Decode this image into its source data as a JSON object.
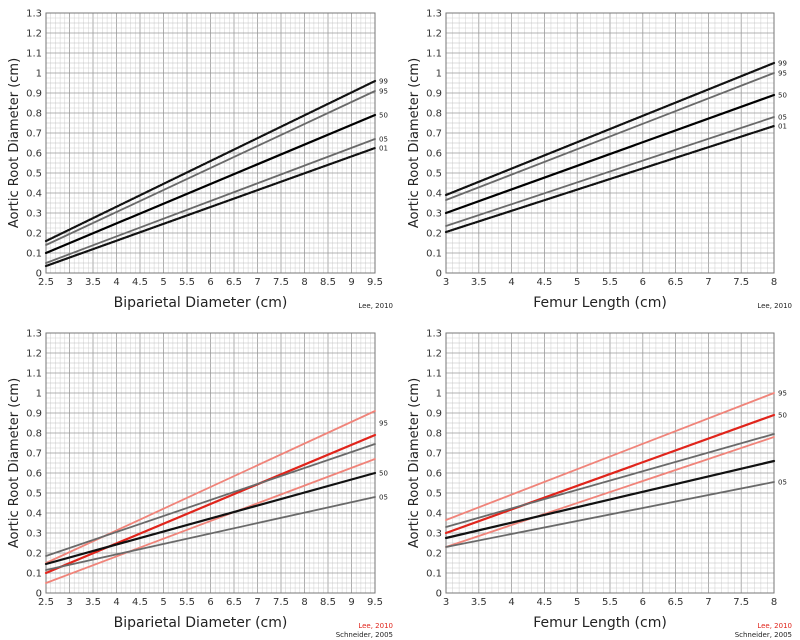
{
  "colors": {
    "lee_line": "#e0241b",
    "lee_light": "#f0847a",
    "schneider_dark": "#111111",
    "schneider_gray": "#6a6a6a",
    "lee2010_text": "#e0241b",
    "credit_text": "#222222",
    "grid_minor": "#cfcfcf",
    "grid_major": "#9a9a9a"
  },
  "chart_data": [
    {
      "type": "line",
      "title": "",
      "xlabel": "Biparietal Diameter (cm)",
      "ylabel": "Aortic Root Diameter  (cm)",
      "xlim": [
        2.5,
        9.5
      ],
      "ylim": [
        0,
        1.3
      ],
      "xticks": [
        "2.5",
        "3",
        "3.5",
        "4",
        "4.5",
        "5",
        "5.5",
        "6",
        "6.5",
        "7",
        "7.5",
        "8",
        "8.5",
        "9",
        "9.5"
      ],
      "yticks": [
        "0",
        "0.1",
        "0.2",
        "0.3",
        "0.4",
        "0.5",
        "0.6",
        "0.7",
        "0.8",
        "0.9",
        "1",
        "1.1",
        "1.2",
        "1.3"
      ],
      "grid": true,
      "credits": [
        {
          "text": "Lee, 2010",
          "color": "credit"
        }
      ],
      "series": [
        {
          "name": "99",
          "x": [
            2.5,
            9.5
          ],
          "values": [
            0.16,
            0.96
          ],
          "style": "dotted",
          "label": "99"
        },
        {
          "name": "95",
          "x": [
            2.5,
            9.5
          ],
          "values": [
            0.14,
            0.91
          ],
          "style": "gray",
          "label": "95"
        },
        {
          "name": "50",
          "x": [
            2.5,
            9.5
          ],
          "values": [
            0.1,
            0.79
          ],
          "style": "bold",
          "label": "50"
        },
        {
          "name": "05",
          "x": [
            2.5,
            9.5
          ],
          "values": [
            0.05,
            0.67
          ],
          "style": "gray",
          "label": "05"
        },
        {
          "name": "01",
          "x": [
            2.5,
            9.5
          ],
          "values": [
            0.035,
            0.625
          ],
          "style": "dotted",
          "label": "01"
        }
      ]
    },
    {
      "type": "line",
      "title": "",
      "xlabel": "Femur Length (cm)",
      "ylabel": "Aortic Root Diameter (cm)",
      "xlim": [
        3,
        8
      ],
      "ylim": [
        0,
        1.3
      ],
      "xticks": [
        "3",
        "3.5",
        "4",
        "4.5",
        "5",
        "5.5",
        "6",
        "6.5",
        "7",
        "7.5",
        "8"
      ],
      "yticks": [
        "0",
        "0.1",
        "0.2",
        "0.3",
        "0.4",
        "0.5",
        "0.6",
        "0.7",
        "0.8",
        "0.9",
        "1",
        "1.1",
        "1.2",
        "1.3"
      ],
      "grid": true,
      "credits": [
        {
          "text": "Lee, 2010",
          "color": "credit"
        }
      ],
      "series": [
        {
          "name": "99",
          "x": [
            3,
            8
          ],
          "values": [
            0.39,
            1.05
          ],
          "style": "dotted",
          "label": "99"
        },
        {
          "name": "95",
          "x": [
            3,
            8
          ],
          "values": [
            0.365,
            1.0
          ],
          "style": "gray",
          "label": "95"
        },
        {
          "name": "50",
          "x": [
            3,
            8
          ],
          "values": [
            0.3,
            0.89
          ],
          "style": "bold",
          "label": "50"
        },
        {
          "name": "05",
          "x": [
            3,
            8
          ],
          "values": [
            0.235,
            0.78
          ],
          "style": "gray",
          "label": "05"
        },
        {
          "name": "01",
          "x": [
            3,
            8
          ],
          "values": [
            0.205,
            0.735
          ],
          "style": "dotted",
          "label": "01"
        }
      ]
    },
    {
      "type": "line",
      "title": "",
      "xlabel": "Biparietal Diameter (cm)",
      "ylabel": "Aortic Root Diameter  (cm)",
      "xlim": [
        2.5,
        9.5
      ],
      "ylim": [
        0,
        1.3
      ],
      "xticks": [
        "2.5",
        "3",
        "3.5",
        "4",
        "4.5",
        "5",
        "5.5",
        "6",
        "6.5",
        "7",
        "7.5",
        "8",
        "8.5",
        "9",
        "9.5"
      ],
      "yticks": [
        "0",
        "0.1",
        "0.2",
        "0.3",
        "0.4",
        "0.5",
        "0.6",
        "0.7",
        "0.8",
        "0.9",
        "1",
        "1.1",
        "1.2",
        "1.3"
      ],
      "grid": true,
      "credits": [
        {
          "text": "Lee, 2010",
          "color": "lee"
        },
        {
          "text": "Schneider, 2005",
          "color": "credit"
        }
      ],
      "series": [
        {
          "name": "Lee 2010 95th",
          "x": [
            2.5,
            9.5
          ],
          "values": [
            0.15,
            0.91
          ],
          "style": "lee-light",
          "label": ""
        },
        {
          "name": "Lee 2010 50th",
          "x": [
            2.5,
            9.5
          ],
          "values": [
            0.1,
            0.79
          ],
          "style": "lee",
          "label": ""
        },
        {
          "name": "Lee 2010 5th",
          "x": [
            2.5,
            9.5
          ],
          "values": [
            0.05,
            0.67
          ],
          "style": "lee-light",
          "label": ""
        },
        {
          "name": "Schneider 2005 95th",
          "x": [
            2.5,
            9.5
          ],
          "values": [
            0.185,
            0.745
          ],
          "style": "schneider-gray",
          "label": "95"
        },
        {
          "name": "Schneider 2005 50th",
          "x": [
            2.5,
            9.5
          ],
          "values": [
            0.145,
            0.6
          ],
          "style": "schneider",
          "label": "50"
        },
        {
          "name": "Schneider 2005 5th",
          "x": [
            2.5,
            9.5
          ],
          "values": [
            0.115,
            0.48
          ],
          "style": "schneider-gray",
          "label": "05"
        }
      ],
      "label_values": {
        "95": 0.85,
        "50": 0.6,
        "05": 0.48
      }
    },
    {
      "type": "line",
      "title": "",
      "xlabel": "Femur Length (cm)",
      "ylabel": "Aortic Root Diameter  (cm)",
      "xlim": [
        3,
        8
      ],
      "ylim": [
        0,
        1.3
      ],
      "xticks": [
        "3",
        "3.5",
        "4",
        "4.5",
        "5",
        "5.5",
        "6",
        "6.5",
        "7",
        "7.5",
        "8"
      ],
      "yticks": [
        "0",
        "0.1",
        "0.2",
        "0.3",
        "0.4",
        "0.5",
        "0.6",
        "0.7",
        "0.8",
        "0.9",
        "1",
        "1.1",
        "1.2",
        "1.3"
      ],
      "grid": true,
      "credits": [
        {
          "text": "Lee, 2010",
          "color": "lee"
        },
        {
          "text": "Schneider, 2005",
          "color": "credit"
        }
      ],
      "series": [
        {
          "name": "Lee 2010 95th",
          "x": [
            3,
            8
          ],
          "values": [
            0.365,
            1.0
          ],
          "style": "lee-light",
          "label": "95"
        },
        {
          "name": "Lee 2010 50th",
          "x": [
            3,
            8
          ],
          "values": [
            0.3,
            0.89
          ],
          "style": "lee",
          "label": "50"
        },
        {
          "name": "Lee 2010 5th",
          "x": [
            3,
            8
          ],
          "values": [
            0.23,
            0.78
          ],
          "style": "lee-light",
          "label": ""
        },
        {
          "name": "Schneider 2005 95th",
          "x": [
            3,
            8
          ],
          "values": [
            0.33,
            0.795
          ],
          "style": "schneider-gray",
          "label": ""
        },
        {
          "name": "Schneider 2005 50th",
          "x": [
            3,
            8
          ],
          "values": [
            0.275,
            0.66
          ],
          "style": "schneider",
          "label": ""
        },
        {
          "name": "Schneider 2005 5th",
          "x": [
            3,
            8
          ],
          "values": [
            0.23,
            0.555
          ],
          "style": "schneider-gray",
          "label": "05"
        }
      ]
    }
  ]
}
